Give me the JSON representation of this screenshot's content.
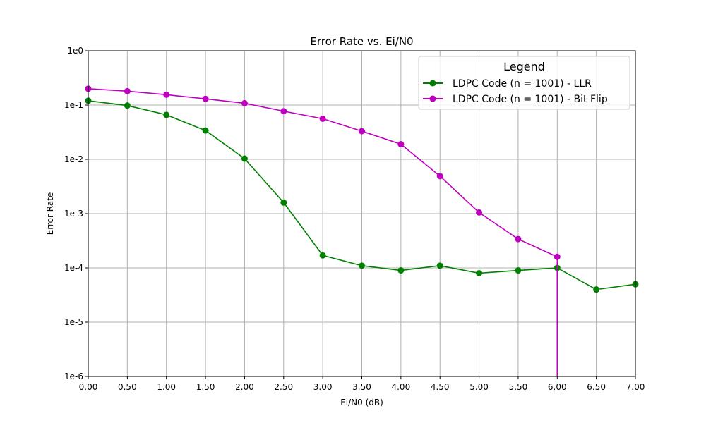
{
  "chart_data": {
    "type": "line",
    "title": "Error Rate vs. Ei/N0",
    "xlabel": "Ei/N0 (dB)",
    "ylabel": "Error Rate",
    "xlim": [
      0,
      7
    ],
    "ylim": [
      1e-06,
      1
    ],
    "yscale": "log",
    "grid": true,
    "x_ticks": [
      "0.00",
      "0.50",
      "1.00",
      "1.50",
      "2.00",
      "2.50",
      "3.00",
      "3.50",
      "4.00",
      "4.50",
      "5.00",
      "5.50",
      "6.00",
      "6.50",
      "7.00"
    ],
    "x_tick_values": [
      0,
      0.5,
      1,
      1.5,
      2,
      2.5,
      3,
      3.5,
      4,
      4.5,
      5,
      5.5,
      6,
      6.5,
      7
    ],
    "y_ticks": [
      "1e0",
      "1e-1",
      "1e-2",
      "1e-3",
      "1e-4",
      "1e-5",
      "1e-6"
    ],
    "y_tick_values": [
      1,
      0.1,
      0.01,
      0.001,
      0.0001,
      1e-05,
      1e-06
    ],
    "legend": {
      "title": "Legend",
      "placement": "top-right"
    },
    "series": [
      {
        "name": "LDPC Code (n = 1001) - LLR",
        "color": "#008000",
        "x": [
          0,
          0.5,
          1,
          1.5,
          2,
          2.5,
          3,
          3.5,
          4,
          4.5,
          5,
          5.5,
          6,
          6.5,
          7
        ],
        "values": [
          0.12,
          0.098,
          0.066,
          0.034,
          0.0103,
          0.0016,
          0.00017,
          0.00011,
          9e-05,
          0.00011,
          8e-05,
          9e-05,
          0.0001,
          4e-05,
          5e-05
        ]
      },
      {
        "name": "LDPC Code (n = 1001) - Bit Flip",
        "color": "#bf00bf",
        "x": [
          0,
          0.5,
          1,
          1.5,
          2,
          2.5,
          3,
          3.5,
          4,
          4.5,
          5,
          5.5,
          6
        ],
        "values": [
          0.2,
          0.18,
          0.155,
          0.13,
          0.108,
          0.077,
          0.056,
          0.033,
          0.019,
          0.0049,
          0.00105,
          0.00034,
          0.00016
        ],
        "drop_to_zero_at": 6
      }
    ]
  }
}
